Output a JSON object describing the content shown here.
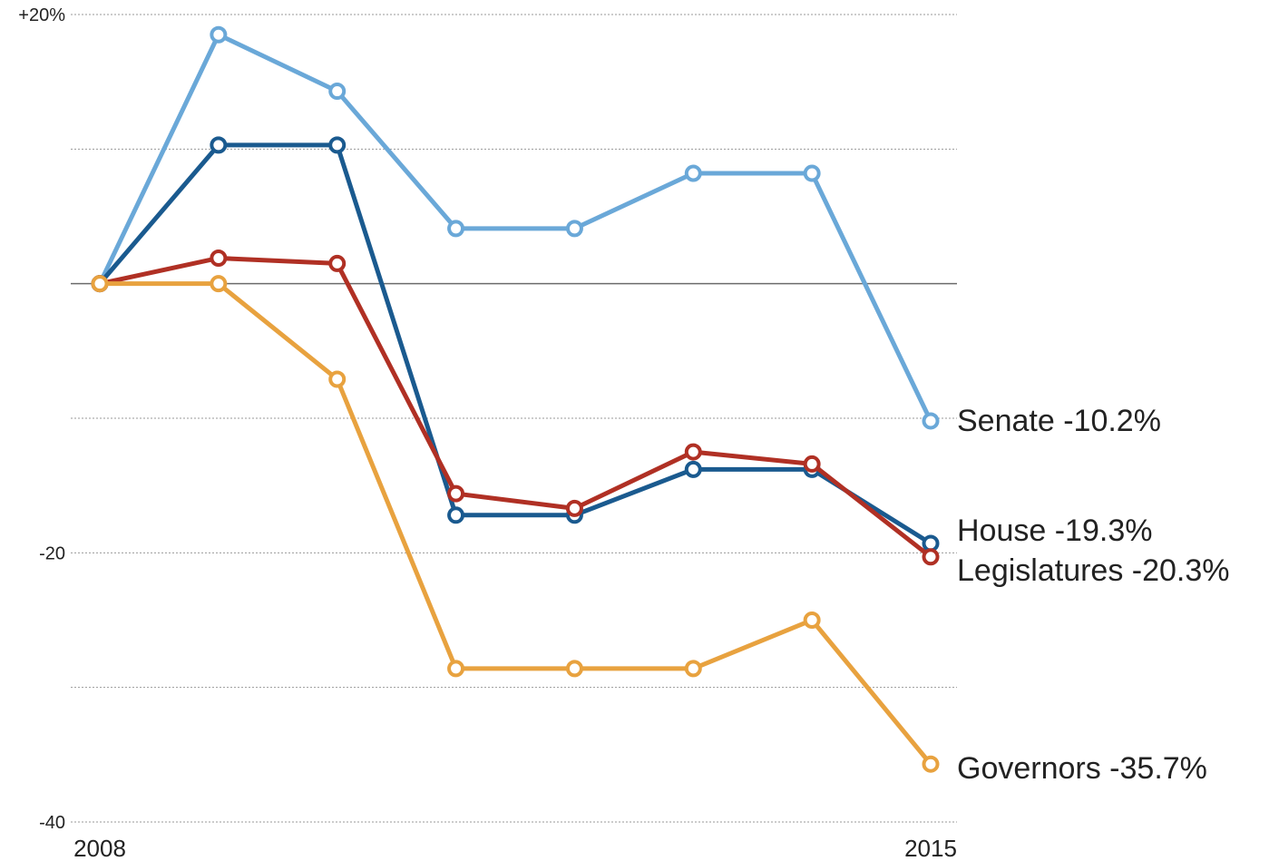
{
  "chart_data": {
    "type": "line",
    "x": [
      2008,
      2009,
      2010,
      2011,
      2012,
      2013,
      2014,
      2015
    ],
    "x_tick_labels": [
      {
        "x": 2008,
        "label": "2008"
      },
      {
        "x": 2015,
        "label": "2015"
      }
    ],
    "y_tick_labels": [
      {
        "y": 20,
        "label": "+20%"
      },
      {
        "y": -20,
        "label": "-20"
      },
      {
        "y": -40,
        "label": "-40"
      }
    ],
    "ylim": [
      -40,
      20
    ],
    "y_gridlines": [
      20,
      10,
      -10,
      -20,
      -30,
      -40
    ],
    "zero_line": 0,
    "series": [
      {
        "name": "Senate",
        "end_label": "Senate -10.2%",
        "color": "#6aa8d8",
        "values": [
          0,
          18.5,
          14.3,
          4.1,
          4.1,
          8.2,
          8.2,
          -10.2
        ]
      },
      {
        "name": "House",
        "end_label": "House -19.3%",
        "color": "#1a5a8f",
        "values": [
          0,
          10.3,
          10.3,
          -17.2,
          -17.2,
          -13.8,
          -13.8,
          -19.3
        ]
      },
      {
        "name": "Legislatures",
        "end_label": "Legislatures -20.3%",
        "color": "#b03024",
        "values": [
          0,
          1.9,
          1.5,
          -15.6,
          -16.7,
          -12.5,
          -13.4,
          -20.3
        ]
      },
      {
        "name": "Governors",
        "end_label": "Governors -35.7%",
        "color": "#e8a23f",
        "values": [
          0,
          0,
          -7.1,
          -28.6,
          -28.6,
          -28.6,
          -25.0,
          -35.7
        ]
      }
    ]
  }
}
